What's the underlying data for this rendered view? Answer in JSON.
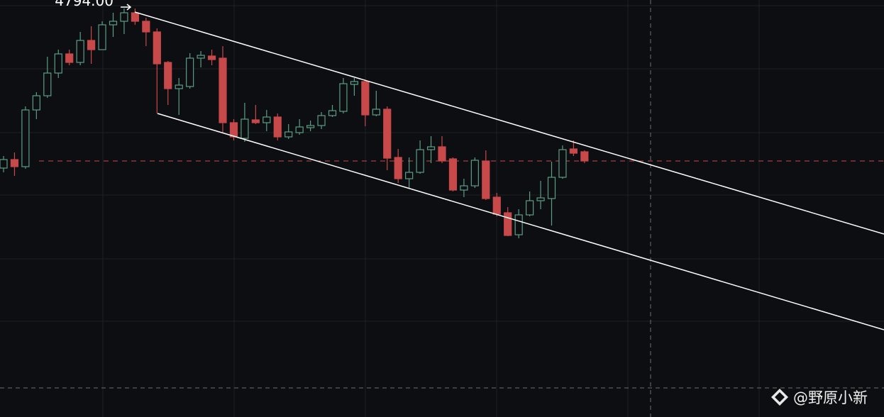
{
  "chart_data": {
    "type": "candlestick",
    "open": [
      4681.5,
      4687.5,
      4682.5,
      4722.5,
      4732.5,
      4748.5,
      4762,
      4756,
      4771.5,
      4765,
      4782.5,
      4785,
      4791,
      4785,
      4777.5,
      4756,
      4737.5,
      4739,
      4759,
      4760.5,
      4759,
      4713.5,
      4702.5,
      4715.5,
      4713.5,
      4717.5,
      4703.5,
      4706.5,
      4710,
      4711.5,
      4718.5,
      4721.5,
      4740.5,
      4742.5,
      4719,
      4723,
      4689,
      4674,
      4678.5,
      4694.5,
      4696.5,
      4688,
      4666,
      4669,
      4686.5,
      4661,
      4650,
      4634.5,
      4648.5,
      4658.5,
      4660,
      4675,
      4695,
      4693
    ],
    "high": [
      4690,
      4692.5,
      4725,
      4735,
      4760,
      4765,
      4765,
      4777.5,
      4781.5,
      4785,
      4791,
      4794,
      4794,
      4787.5,
      4780,
      4757,
      4745,
      4762.5,
      4764,
      4765,
      4767.5,
      4716,
      4727.5,
      4726,
      4722.5,
      4720,
      4712.5,
      4716,
      4715,
      4721,
      4726,
      4745,
      4745,
      4744,
      4736,
      4725,
      4695,
      4689,
      4701,
      4704,
      4704,
      4689,
      4674,
      4689,
      4694,
      4664,
      4654,
      4652.5,
      4665,
      4672.5,
      4686,
      4697.5,
      4701,
      4694
    ],
    "low": [
      4678.5,
      4676,
      4681,
      4716,
      4731,
      4745,
      4754,
      4754,
      4755,
      4765,
      4774,
      4776,
      4782.5,
      4767.5,
      4720,
      4726,
      4719,
      4737.5,
      4752.5,
      4754,
      4706,
      4701,
      4700,
      4712.5,
      4707.5,
      4701,
      4702,
      4705,
      4707.5,
      4709,
      4717.5,
      4720,
      4732.5,
      4711,
      4718,
      4680,
      4671,
      4667.5,
      4677.5,
      4685,
      4685,
      4665,
      4661,
      4667.5,
      4659,
      4647.5,
      4633.5,
      4632,
      4647.5,
      4652.5,
      4641,
      4674,
      4690,
      4685
    ],
    "close": [
      4687.5,
      4682.5,
      4722.5,
      4732.5,
      4748.5,
      4762,
      4756,
      4771.5,
      4765,
      4782.5,
      4785,
      4791,
      4785,
      4777.5,
      4755,
      4737.5,
      4740,
      4759,
      4761,
      4758,
      4713.5,
      4703.5,
      4716,
      4713.5,
      4717.5,
      4703.5,
      4707,
      4710.5,
      4711.5,
      4718.5,
      4722,
      4741,
      4742.5,
      4719,
      4723,
      4688.5,
      4674,
      4678.5,
      4694.5,
      4696.5,
      4686.5,
      4666,
      4669,
      4687,
      4660,
      4649,
      4634,
      4648.5,
      4658.5,
      4660.5,
      4675,
      4694.5,
      4692,
      4686.5
    ],
    "up_color": "#5b9e84",
    "down_color": "#c8494a",
    "ylim": [
      4506,
      4800
    ],
    "grid": true,
    "high_label": {
      "value": 4794,
      "label": "4794.00"
    },
    "watermark": "@野原小新"
  }
}
